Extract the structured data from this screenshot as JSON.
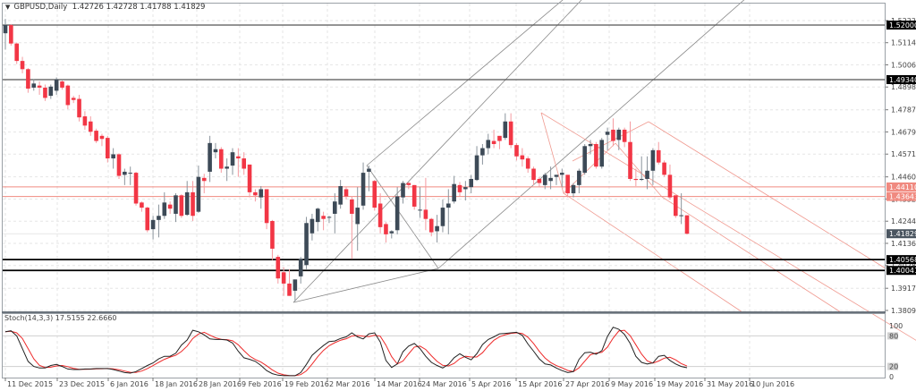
{
  "header": {
    "symbol_label": "GBPUSD,Daily",
    "ohlc": "1.42726 1.42728 1.41788 1.41829"
  },
  "stochastic": {
    "label": "Stoch(14,3,3) 17.5155 22.6660",
    "levels": [
      "100",
      "80",
      "20",
      "0"
    ]
  },
  "colors": {
    "bull": "#3d4a57",
    "bear": "#f23645",
    "grid": "#e6e6e6",
    "hline": "#555555",
    "support": "#000000",
    "resistance_red": "#f08a80",
    "pitchfork_gray": "#8a8a8a",
    "pitchfork_red": "#f09a90",
    "stoch_main": "#222222",
    "stoch_signal": "#ee2a2a"
  },
  "chart_data": {
    "type": "candlestick",
    "title": "GBPUSD,Daily",
    "ylim": [
      1.3809,
      1.5274
    ],
    "y_ticks": [
      "1.52220",
      "1.51140",
      "1.50060",
      "1.48980",
      "1.47870",
      "1.46790",
      "1.45710",
      "1.44600",
      "1.43520",
      "1.42440",
      "1.41360",
      "1.40280",
      "1.39170",
      "1.38090"
    ],
    "x_ticks": [
      "11 Dec 2015",
      "23 Dec 2015",
      "6 Jan 2016",
      "18 Jan 2016",
      "28 Jan 2016",
      "9 Feb 2016",
      "19 Feb 2016",
      "2 Mar 2016",
      "14 Mar 2016",
      "24 Mar 2016",
      "5 Apr 2016",
      "15 Apr 2016",
      "27 Apr 2016",
      "9 May 2016",
      "19 May 2016",
      "31 May 2016",
      "10 Jun 2016"
    ],
    "horizontal_levels": [
      {
        "price": "1.52000",
        "style": "black"
      },
      {
        "price": "1.49340",
        "style": "black"
      },
      {
        "price": "1.44110",
        "style": "red"
      },
      {
        "price": "1.43643",
        "style": "red"
      },
      {
        "price": "1.41829",
        "style": "current"
      },
      {
        "price": "1.40568",
        "style": "black-thick"
      },
      {
        "price": "1.40041",
        "style": "black-thick"
      }
    ],
    "candles": [
      {
        "o": 1.516,
        "h": 1.523,
        "l": 1.508,
        "c": 1.52
      },
      {
        "o": 1.52,
        "h": 1.5205,
        "l": 1.51,
        "c": 1.511
      },
      {
        "o": 1.511,
        "h": 1.5115,
        "l": 1.501,
        "c": 1.5025
      },
      {
        "o": 1.5025,
        "h": 1.5045,
        "l": 1.4965,
        "c": 1.4985
      },
      {
        "o": 1.4985,
        "h": 1.499,
        "l": 1.487,
        "c": 1.489
      },
      {
        "o": 1.4895,
        "h": 1.4935,
        "l": 1.488,
        "c": 1.4915
      },
      {
        "o": 1.4905,
        "h": 1.4925,
        "l": 1.486,
        "c": 1.4895
      },
      {
        "o": 1.4895,
        "h": 1.491,
        "l": 1.483,
        "c": 1.4845
      },
      {
        "o": 1.4855,
        "h": 1.491,
        "l": 1.484,
        "c": 1.49
      },
      {
        "o": 1.488,
        "h": 1.4945,
        "l": 1.486,
        "c": 1.4935
      },
      {
        "o": 1.4925,
        "h": 1.493,
        "l": 1.4885,
        "c": 1.4895
      },
      {
        "o": 1.4905,
        "h": 1.491,
        "l": 1.479,
        "c": 1.481
      },
      {
        "o": 1.4845,
        "h": 1.4855,
        "l": 1.482,
        "c": 1.4835
      },
      {
        "o": 1.484,
        "h": 1.486,
        "l": 1.473,
        "c": 1.475
      },
      {
        "o": 1.4755,
        "h": 1.478,
        "l": 1.469,
        "c": 1.471
      },
      {
        "o": 1.473,
        "h": 1.4755,
        "l": 1.466,
        "c": 1.468
      },
      {
        "o": 1.4685,
        "h": 1.4695,
        "l": 1.4625,
        "c": 1.4635
      },
      {
        "o": 1.466,
        "h": 1.467,
        "l": 1.461,
        "c": 1.4645
      },
      {
        "o": 1.465,
        "h": 1.466,
        "l": 1.453,
        "c": 1.455
      },
      {
        "o": 1.455,
        "h": 1.46,
        "l": 1.45,
        "c": 1.457
      },
      {
        "o": 1.457,
        "h": 1.4575,
        "l": 1.445,
        "c": 1.4465
      },
      {
        "o": 1.447,
        "h": 1.45,
        "l": 1.442,
        "c": 1.4485
      },
      {
        "o": 1.448,
        "h": 1.451,
        "l": 1.442,
        "c": 1.448
      },
      {
        "o": 1.448,
        "h": 1.4485,
        "l": 1.432,
        "c": 1.433
      },
      {
        "o": 1.4335,
        "h": 1.434,
        "l": 1.429,
        "c": 1.431
      },
      {
        "o": 1.431,
        "h": 1.4315,
        "l": 1.419,
        "c": 1.42
      },
      {
        "o": 1.4205,
        "h": 1.427,
        "l": 1.4155,
        "c": 1.425
      },
      {
        "o": 1.425,
        "h": 1.4325,
        "l": 1.4165,
        "c": 1.427
      },
      {
        "o": 1.427,
        "h": 1.4385,
        "l": 1.4255,
        "c": 1.4335
      },
      {
        "o": 1.4325,
        "h": 1.434,
        "l": 1.428,
        "c": 1.4305
      },
      {
        "o": 1.428,
        "h": 1.438,
        "l": 1.424,
        "c": 1.437
      },
      {
        "o": 1.437,
        "h": 1.4375,
        "l": 1.426,
        "c": 1.427
      },
      {
        "o": 1.4275,
        "h": 1.444,
        "l": 1.427,
        "c": 1.4385
      },
      {
        "o": 1.4385,
        "h": 1.444,
        "l": 1.4245,
        "c": 1.427
      },
      {
        "o": 1.429,
        "h": 1.4515,
        "l": 1.4285,
        "c": 1.446
      },
      {
        "o": 1.4455,
        "h": 1.4475,
        "l": 1.438,
        "c": 1.444
      },
      {
        "o": 1.4485,
        "h": 1.466,
        "l": 1.4435,
        "c": 1.4625
      },
      {
        "o": 1.458,
        "h": 1.4625,
        "l": 1.455,
        "c": 1.4595
      },
      {
        "o": 1.4595,
        "h": 1.4605,
        "l": 1.448,
        "c": 1.45
      },
      {
        "o": 1.45,
        "h": 1.455,
        "l": 1.444,
        "c": 1.451
      },
      {
        "o": 1.4515,
        "h": 1.46,
        "l": 1.447,
        "c": 1.458
      },
      {
        "o": 1.456,
        "h": 1.46,
        "l": 1.446,
        "c": 1.455
      },
      {
        "o": 1.455,
        "h": 1.458,
        "l": 1.447,
        "c": 1.45
      },
      {
        "o": 1.452,
        "h": 1.452,
        "l": 1.436,
        "c": 1.4385
      },
      {
        "o": 1.4385,
        "h": 1.44,
        "l": 1.434,
        "c": 1.437
      },
      {
        "o": 1.436,
        "h": 1.4415,
        "l": 1.4305,
        "c": 1.44
      },
      {
        "o": 1.44,
        "h": 1.4395,
        "l": 1.4205,
        "c": 1.4235
      },
      {
        "o": 1.4245,
        "h": 1.425,
        "l": 1.4055,
        "c": 1.411
      },
      {
        "o": 1.407,
        "h": 1.408,
        "l": 1.394,
        "c": 1.3965
      },
      {
        "o": 1.3995,
        "h": 1.402,
        "l": 1.388,
        "c": 1.394
      },
      {
        "o": 1.394,
        "h": 1.401,
        "l": 1.388,
        "c": 1.388
      },
      {
        "o": 1.3905,
        "h": 1.396,
        "l": 1.3855,
        "c": 1.396
      },
      {
        "o": 1.3975,
        "h": 1.407,
        "l": 1.394,
        "c": 1.406
      },
      {
        "o": 1.403,
        "h": 1.4265,
        "l": 1.401,
        "c": 1.4235
      },
      {
        "o": 1.4185,
        "h": 1.428,
        "l": 1.415,
        "c": 1.4255
      },
      {
        "o": 1.424,
        "h": 1.431,
        "l": 1.4195,
        "c": 1.4305
      },
      {
        "o": 1.427,
        "h": 1.429,
        "l": 1.42,
        "c": 1.4255
      },
      {
        "o": 1.4265,
        "h": 1.427,
        "l": 1.4235,
        "c": 1.4265
      },
      {
        "o": 1.428,
        "h": 1.438,
        "l": 1.4185,
        "c": 1.434
      },
      {
        "o": 1.4325,
        "h": 1.4445,
        "l": 1.4305,
        "c": 1.4415
      },
      {
        "o": 1.44,
        "h": 1.441,
        "l": 1.435,
        "c": 1.4365
      },
      {
        "o": 1.435,
        "h": 1.4365,
        "l": 1.406,
        "c": 1.428
      },
      {
        "o": 1.423,
        "h": 1.441,
        "l": 1.41,
        "c": 1.431
      },
      {
        "o": 1.432,
        "h": 1.453,
        "l": 1.43,
        "c": 1.448
      },
      {
        "o": 1.4485,
        "h": 1.4515,
        "l": 1.439,
        "c": 1.45
      },
      {
        "o": 1.444,
        "h": 1.4445,
        "l": 1.4295,
        "c": 1.431
      },
      {
        "o": 1.433,
        "h": 1.438,
        "l": 1.4185,
        "c": 1.4215
      },
      {
        "o": 1.423,
        "h": 1.424,
        "l": 1.414,
        "c": 1.418
      },
      {
        "o": 1.4185,
        "h": 1.42,
        "l": 1.416,
        "c": 1.4195
      },
      {
        "o": 1.42,
        "h": 1.441,
        "l": 1.418,
        "c": 1.4365
      },
      {
        "o": 1.436,
        "h": 1.444,
        "l": 1.433,
        "c": 1.443
      },
      {
        "o": 1.443,
        "h": 1.4435,
        "l": 1.44,
        "c": 1.442
      },
      {
        "o": 1.442,
        "h": 1.442,
        "l": 1.43,
        "c": 1.4315
      },
      {
        "o": 1.43,
        "h": 1.441,
        "l": 1.426,
        "c": 1.43
      },
      {
        "o": 1.43,
        "h": 1.4455,
        "l": 1.42,
        "c": 1.4255
      },
      {
        "o": 1.4255,
        "h": 1.426,
        "l": 1.417,
        "c": 1.419
      },
      {
        "o": 1.4195,
        "h": 1.4275,
        "l": 1.414,
        "c": 1.422
      },
      {
        "o": 1.422,
        "h": 1.435,
        "l": 1.419,
        "c": 1.431
      },
      {
        "o": 1.431,
        "h": 1.44,
        "l": 1.418,
        "c": 1.433
      },
      {
        "o": 1.434,
        "h": 1.4465,
        "l": 1.433,
        "c": 1.4425
      },
      {
        "o": 1.442,
        "h": 1.4435,
        "l": 1.4365,
        "c": 1.4385
      },
      {
        "o": 1.44,
        "h": 1.444,
        "l": 1.4345,
        "c": 1.441
      },
      {
        "o": 1.441,
        "h": 1.447,
        "l": 1.438,
        "c": 1.445
      },
      {
        "o": 1.4445,
        "h": 1.461,
        "l": 1.444,
        "c": 1.4565
      },
      {
        "o": 1.4565,
        "h": 1.462,
        "l": 1.452,
        "c": 1.46
      },
      {
        "o": 1.46,
        "h": 1.467,
        "l": 1.457,
        "c": 1.464
      },
      {
        "o": 1.4635,
        "h": 1.469,
        "l": 1.46,
        "c": 1.462
      },
      {
        "o": 1.466,
        "h": 1.464,
        "l": 1.4595,
        "c": 1.4635
      },
      {
        "o": 1.465,
        "h": 1.477,
        "l": 1.464,
        "c": 1.473
      },
      {
        "o": 1.473,
        "h": 1.477,
        "l": 1.46,
        "c": 1.4615
      },
      {
        "o": 1.4615,
        "h": 1.4625,
        "l": 1.454,
        "c": 1.456
      },
      {
        "o": 1.4565,
        "h": 1.46,
        "l": 1.451,
        "c": 1.4545
      },
      {
        "o": 1.455,
        "h": 1.456,
        "l": 1.448,
        "c": 1.45
      },
      {
        "o": 1.45,
        "h": 1.451,
        "l": 1.442,
        "c": 1.4445
      },
      {
        "o": 1.445,
        "h": 1.446,
        "l": 1.441,
        "c": 1.443
      },
      {
        "o": 1.442,
        "h": 1.448,
        "l": 1.44,
        "c": 1.447
      },
      {
        "o": 1.444,
        "h": 1.451,
        "l": 1.44,
        "c": 1.4455
      },
      {
        "o": 1.446,
        "h": 1.447,
        "l": 1.442,
        "c": 1.447
      },
      {
        "o": 1.447,
        "h": 1.45,
        "l": 1.441,
        "c": 1.448
      },
      {
        "o": 1.447,
        "h": 1.447,
        "l": 1.436,
        "c": 1.438
      },
      {
        "o": 1.438,
        "h": 1.443,
        "l": 1.436,
        "c": 1.442
      },
      {
        "o": 1.442,
        "h": 1.45,
        "l": 1.438,
        "c": 1.449
      },
      {
        "o": 1.448,
        "h": 1.462,
        "l": 1.447,
        "c": 1.461
      },
      {
        "o": 1.461,
        "h": 1.464,
        "l": 1.457,
        "c": 1.462
      },
      {
        "o": 1.462,
        "h": 1.463,
        "l": 1.45,
        "c": 1.451
      },
      {
        "o": 1.451,
        "h": 1.465,
        "l": 1.45,
        "c": 1.464
      },
      {
        "o": 1.4665,
        "h": 1.47,
        "l": 1.459,
        "c": 1.468
      },
      {
        "o": 1.469,
        "h": 1.4745,
        "l": 1.461,
        "c": 1.4635
      },
      {
        "o": 1.464,
        "h": 1.47,
        "l": 1.459,
        "c": 1.469
      },
      {
        "o": 1.469,
        "h": 1.47,
        "l": 1.4605,
        "c": 1.463
      },
      {
        "o": 1.463,
        "h": 1.473,
        "l": 1.444,
        "c": 1.445
      },
      {
        "o": 1.445,
        "h": 1.45,
        "l": 1.4415,
        "c": 1.4445
      },
      {
        "o": 1.445,
        "h": 1.456,
        "l": 1.444,
        "c": 1.445
      },
      {
        "o": 1.445,
        "h": 1.456,
        "l": 1.44,
        "c": 1.449
      },
      {
        "o": 1.449,
        "h": 1.46,
        "l": 1.442,
        "c": 1.459
      },
      {
        "o": 1.459,
        "h": 1.463,
        "l": 1.452,
        "c": 1.453
      },
      {
        "o": 1.453,
        "h": 1.454,
        "l": 1.446,
        "c": 1.447
      },
      {
        "o": 1.447,
        "h": 1.452,
        "l": 1.435,
        "c": 1.436
      },
      {
        "o": 1.437,
        "h": 1.437,
        "l": 1.426,
        "c": 1.427
      },
      {
        "o": 1.427,
        "h": 1.438,
        "l": 1.423,
        "c": 1.4273
      },
      {
        "o": 1.42726,
        "h": 1.42728,
        "l": 1.41788,
        "c": 1.41829
      }
    ],
    "stoch_main": [],
    "stoch_signal": []
  }
}
